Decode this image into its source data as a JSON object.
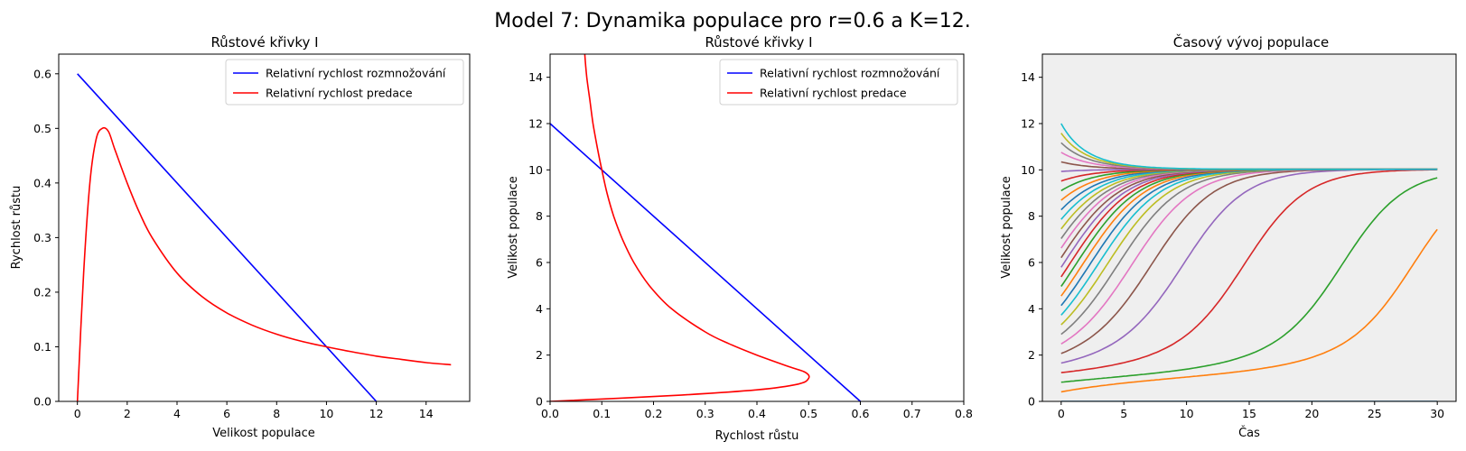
{
  "suptitle": "Model 7: Dynamika populace pro r=0.6 a K=12.",
  "chart_data": [
    {
      "type": "line",
      "title": "Růstové křivky I",
      "xlabel": "Velikost populace",
      "ylabel": "Rychlost růstu",
      "xlim": [
        -0.75,
        15.75
      ],
      "ylim": [
        0,
        0.636
      ],
      "xticks": [
        "0",
        "2",
        "4",
        "6",
        "8",
        "10",
        "12",
        "14"
      ],
      "yticks": [
        "0.0",
        "0.1",
        "0.2",
        "0.3",
        "0.4",
        "0.5",
        "0.6"
      ],
      "legend": "upper right",
      "series": [
        {
          "name": "Relativní rychlost rozmnožování",
          "color": "#0000ff",
          "x": [
            0,
            12
          ],
          "y": [
            0.6,
            0
          ]
        },
        {
          "name": "Relativní rychlost predace",
          "color": "#ff0000",
          "x": [
            0,
            0.25,
            0.5,
            0.75,
            1.0,
            1.25,
            1.5,
            2,
            2.5,
            3,
            4,
            5,
            6,
            7,
            8,
            9,
            10,
            11,
            12,
            13,
            14,
            15
          ],
          "y": [
            0,
            0.235,
            0.4,
            0.48,
            0.5,
            0.494,
            0.462,
            0.4,
            0.345,
            0.3,
            0.235,
            0.192,
            0.162,
            0.14,
            0.123,
            0.11,
            0.1,
            0.091,
            0.083,
            0.077,
            0.071,
            0.067
          ]
        }
      ]
    },
    {
      "type": "line",
      "title": "Růstové křivky I",
      "xlabel": "Rychlost růstu",
      "ylabel": "Velikost populace",
      "xlim": [
        0,
        0.8
      ],
      "ylim": [
        0,
        15
      ],
      "xticks": [
        "0.0",
        "0.1",
        "0.2",
        "0.3",
        "0.4",
        "0.5",
        "0.6",
        "0.7",
        "0.8"
      ],
      "yticks": [
        "0",
        "2",
        "4",
        "6",
        "8",
        "10",
        "12",
        "14"
      ],
      "legend": "upper right",
      "series": [
        {
          "name": "Relativní rychlost rozmnožování",
          "color": "#0000ff",
          "x": [
            0,
            0.6
          ],
          "y": [
            12,
            0
          ]
        },
        {
          "name": "Relativní rychlost predace",
          "color": "#ff0000",
          "x": [
            0,
            0.235,
            0.4,
            0.48,
            0.5,
            0.494,
            0.462,
            0.4,
            0.345,
            0.3,
            0.235,
            0.192,
            0.162,
            0.14,
            0.123,
            0.11,
            0.1,
            0.091,
            0.083,
            0.077,
            0.071,
            0.067
          ],
          "y": [
            0,
            0.25,
            0.5,
            0.75,
            1.0,
            1.25,
            1.5,
            2,
            2.5,
            3,
            4,
            5,
            6,
            7,
            8,
            9,
            10,
            11,
            12,
            13,
            14,
            15
          ]
        }
      ]
    },
    {
      "type": "line",
      "title": "Časový vývoj populace",
      "xlabel": "Čas",
      "ylabel": "Velikost populace",
      "xlim": [
        -1.5,
        31.5
      ],
      "ylim": [
        0,
        15
      ],
      "xticks": [
        "0",
        "5",
        "10",
        "15",
        "20",
        "25",
        "30"
      ],
      "yticks": [
        "0",
        "2",
        "4",
        "6",
        "8",
        "10",
        "12",
        "14"
      ],
      "background": "#efefef",
      "equilibrium": 10,
      "time_range": [
        0,
        30
      ],
      "initial_values": [
        0.0,
        0.414,
        0.828,
        1.241,
        1.655,
        2.069,
        2.483,
        2.897,
        3.31,
        3.724,
        4.138,
        4.552,
        4.966,
        5.379,
        5.793,
        6.207,
        6.621,
        7.034,
        7.448,
        7.862,
        8.276,
        8.69,
        9.103,
        9.517,
        9.931,
        10.345,
        10.759,
        11.172,
        11.586,
        12.0
      ],
      "palette": [
        "#1f77b4",
        "#ff7f0e",
        "#2ca02c",
        "#d62728",
        "#9467bd",
        "#8c564b",
        "#e377c2",
        "#7f7f7f",
        "#bcbd22",
        "#17becf"
      ]
    }
  ]
}
